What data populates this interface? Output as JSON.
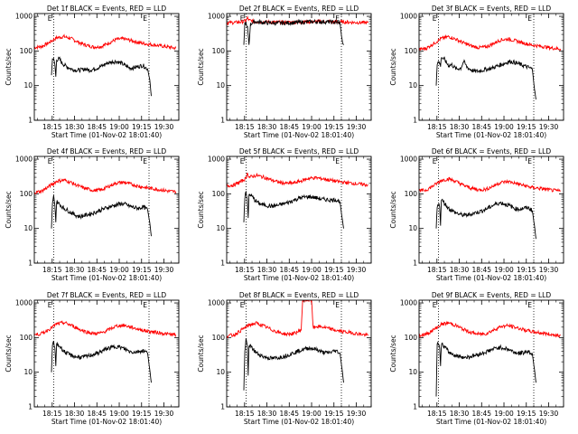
{
  "colors": {
    "events": "#000000",
    "lld": "#ff0000",
    "axes": "#000000",
    "background": "#ffffff"
  },
  "shared": {
    "ylabel": "Counts/sec",
    "xlabel": "Start Time (01-Nov-02 18:01:40)",
    "yticks": [
      1,
      10,
      100,
      1000
    ],
    "ytick_labels": [
      "1",
      "10",
      "100",
      "1000"
    ],
    "xticks": [
      "18:15",
      "18:30",
      "18:45",
      "19:00",
      "19:15",
      "19:30"
    ],
    "xtick_minutes": [
      15,
      30,
      45,
      60,
      75,
      90
    ],
    "xlim_minutes": [
      3,
      100
    ],
    "ylim": [
      1,
      1200
    ],
    "yscale": "log",
    "marker_label": "E",
    "marker_minutes": [
      16,
      80
    ]
  },
  "chart_data": [
    {
      "type": "line",
      "title": "Det 1f BLACK = Events, RED = LLD",
      "series": [
        {
          "name": "Events",
          "x": [
            14.5,
            15.2,
            16,
            16.8,
            17.4,
            18,
            19,
            20,
            21.5,
            23,
            25,
            28,
            31,
            34,
            37,
            40,
            43,
            46,
            49,
            52,
            55,
            58,
            61,
            64,
            67,
            70,
            73,
            76,
            79,
            80.5,
            81.5
          ],
          "y": [
            20,
            55,
            60,
            40,
            18,
            55,
            58,
            58,
            45,
            40,
            35,
            30,
            28,
            28,
            30,
            28,
            30,
            33,
            38,
            45,
            48,
            50,
            45,
            38,
            32,
            33,
            36,
            38,
            30,
            15,
            5
          ]
        },
        {
          "name": "LLD",
          "x": [
            3,
            8,
            13,
            18,
            23,
            28,
            33,
            38,
            43,
            48,
            53,
            58,
            63,
            68,
            73,
            78,
            83,
            88,
            93,
            98
          ],
          "y": [
            125,
            135,
            175,
            240,
            260,
            225,
            175,
            145,
            130,
            135,
            170,
            215,
            225,
            200,
            175,
            160,
            150,
            140,
            130,
            120
          ]
        }
      ]
    },
    {
      "type": "line",
      "title": "Det 2f BLACK = Events, RED = LLD",
      "series": [
        {
          "name": "Events",
          "x": [
            14.5,
            15.2,
            16,
            17,
            18,
            19,
            20,
            22,
            25,
            30,
            35,
            40,
            45,
            50,
            55,
            60,
            65,
            70,
            75,
            79,
            80.5,
            81.5
          ],
          "y": [
            150,
            600,
            650,
            500,
            150,
            580,
            650,
            700,
            680,
            650,
            640,
            640,
            650,
            660,
            680,
            700,
            700,
            690,
            680,
            650,
            200,
            150
          ]
        },
        {
          "name": "LLD",
          "x": [
            3,
            8,
            13,
            16,
            17,
            18,
            23,
            28,
            33,
            38,
            43,
            48,
            53,
            58,
            63,
            68,
            73,
            78,
            83,
            88,
            93,
            98
          ],
          "y": [
            650,
            660,
            690,
            750,
            900,
            760,
            700,
            690,
            680,
            670,
            670,
            675,
            685,
            695,
            700,
            705,
            700,
            690,
            680,
            670,
            660,
            655
          ]
        }
      ]
    },
    {
      "type": "line",
      "title": "Det 3f BLACK = Events, RED = LLD",
      "series": [
        {
          "name": "Events",
          "x": [
            14.5,
            15.2,
            16,
            16.8,
            17.4,
            18,
            19,
            20,
            21.5,
            23,
            25,
            28,
            31,
            33,
            35,
            37,
            40,
            43,
            46,
            49,
            52,
            55,
            58,
            61,
            64,
            67,
            70,
            73,
            76,
            79,
            80.5,
            81.5
          ],
          "y": [
            10,
            40,
            50,
            45,
            35,
            70,
            60,
            58,
            45,
            38,
            40,
            30,
            32,
            50,
            35,
            30,
            26,
            26,
            28,
            30,
            32,
            36,
            40,
            45,
            50,
            47,
            42,
            38,
            34,
            30,
            8,
            4
          ]
        },
        {
          "name": "LLD",
          "x": [
            3,
            8,
            13,
            18,
            23,
            28,
            33,
            38,
            43,
            48,
            53,
            58,
            63,
            68,
            73,
            78,
            83,
            88,
            93,
            98
          ],
          "y": [
            110,
            120,
            165,
            230,
            260,
            215,
            170,
            140,
            125,
            130,
            165,
            210,
            220,
            195,
            170,
            150,
            140,
            130,
            120,
            115
          ]
        }
      ]
    },
    {
      "type": "line",
      "title": "Det 4f BLACK = Events, RED = LLD",
      "series": [
        {
          "name": "Events",
          "x": [
            14.5,
            15.2,
            16,
            16.8,
            17.4,
            18,
            19,
            20,
            21.5,
            23,
            25,
            28,
            31,
            34,
            37,
            40,
            43,
            46,
            49,
            52,
            55,
            58,
            61,
            64,
            67,
            70,
            73,
            76,
            79,
            80.5,
            81.5
          ],
          "y": [
            10,
            55,
            90,
            45,
            15,
            60,
            55,
            50,
            42,
            38,
            34,
            28,
            24,
            22,
            24,
            26,
            28,
            32,
            36,
            40,
            44,
            48,
            52,
            50,
            44,
            40,
            38,
            42,
            35,
            15,
            6
          ]
        },
        {
          "name": "LLD",
          "x": [
            3,
            8,
            13,
            18,
            23,
            28,
            33,
            38,
            43,
            48,
            53,
            58,
            63,
            68,
            73,
            78,
            83,
            88,
            93,
            98
          ],
          "y": [
            110,
            120,
            165,
            230,
            250,
            210,
            165,
            140,
            125,
            130,
            165,
            205,
            215,
            190,
            165,
            150,
            140,
            130,
            120,
            115
          ]
        }
      ]
    },
    {
      "type": "line",
      "title": "Det 5f BLACK = Events, RED = LLD",
      "series": [
        {
          "name": "Events",
          "x": [
            14.5,
            15.2,
            16,
            16.8,
            17.4,
            18,
            19,
            20,
            21.5,
            23,
            25,
            28,
            31,
            34,
            37,
            40,
            43,
            46,
            49,
            52,
            55,
            58,
            61,
            64,
            67,
            70,
            73,
            76,
            79,
            80.5,
            81.5
          ],
          "y": [
            15,
            80,
            110,
            70,
            20,
            90,
            95,
            85,
            70,
            60,
            52,
            48,
            45,
            44,
            46,
            50,
            54,
            60,
            68,
            76,
            80,
            82,
            80,
            75,
            70,
            68,
            66,
            68,
            60,
            20,
            10
          ]
        },
        {
          "name": "LLD",
          "x": [
            3,
            8,
            13,
            16,
            17,
            18,
            23,
            28,
            33,
            38,
            43,
            48,
            53,
            58,
            63,
            68,
            73,
            78,
            83,
            88,
            93,
            98
          ],
          "y": [
            170,
            180,
            230,
            280,
            420,
            300,
            340,
            300,
            250,
            215,
            200,
            205,
            235,
            280,
            290,
            270,
            245,
            225,
            210,
            200,
            190,
            180
          ]
        }
      ]
    },
    {
      "type": "line",
      "title": "Det 6f BLACK = Events, RED = LLD",
      "series": [
        {
          "name": "Events",
          "x": [
            14.5,
            15.2,
            16,
            16.8,
            17.4,
            18,
            19,
            20,
            21.5,
            23,
            25,
            28,
            31,
            34,
            37,
            40,
            43,
            46,
            49,
            52,
            55,
            58,
            61,
            64,
            67,
            70,
            73,
            76,
            79,
            80.5,
            81.5
          ],
          "y": [
            10,
            45,
            55,
            42,
            12,
            70,
            60,
            55,
            45,
            38,
            33,
            28,
            25,
            24,
            25,
            28,
            30,
            33,
            38,
            45,
            52,
            55,
            50,
            45,
            38,
            36,
            38,
            40,
            33,
            12,
            5
          ]
        },
        {
          "name": "LLD",
          "x": [
            3,
            8,
            13,
            18,
            23,
            28,
            33,
            38,
            43,
            48,
            53,
            58,
            63,
            68,
            73,
            78,
            83,
            88,
            93,
            98
          ],
          "y": [
            120,
            130,
            175,
            245,
            270,
            225,
            175,
            145,
            130,
            135,
            170,
            215,
            225,
            200,
            175,
            155,
            145,
            135,
            125,
            120
          ]
        }
      ]
    },
    {
      "type": "line",
      "title": "Det 7f BLACK = Events, RED = LLD",
      "series": [
        {
          "name": "Events",
          "x": [
            14.5,
            15.2,
            16,
            16.8,
            17.4,
            18,
            19,
            20,
            21.5,
            23,
            25,
            28,
            31,
            34,
            37,
            40,
            43,
            46,
            49,
            52,
            55,
            58,
            61,
            64,
            67,
            70,
            73,
            76,
            79,
            80.5,
            81.5
          ],
          "y": [
            10,
            65,
            70,
            50,
            15,
            65,
            60,
            56,
            48,
            40,
            35,
            30,
            28,
            27,
            28,
            30,
            33,
            36,
            42,
            48,
            52,
            56,
            52,
            46,
            40,
            38,
            40,
            42,
            36,
            12,
            5
          ]
        },
        {
          "name": "LLD",
          "x": [
            3,
            8,
            13,
            18,
            23,
            28,
            33,
            38,
            43,
            48,
            53,
            58,
            63,
            68,
            73,
            78,
            83,
            88,
            93,
            98
          ],
          "y": [
            120,
            130,
            175,
            245,
            270,
            225,
            175,
            145,
            130,
            135,
            170,
            215,
            225,
            200,
            175,
            155,
            145,
            135,
            125,
            120
          ]
        }
      ]
    },
    {
      "type": "line",
      "title": "Det 8f BLACK = Events, RED = LLD",
      "series": [
        {
          "name": "Events",
          "x": [
            14.5,
            15.2,
            16,
            16.8,
            17.4,
            18,
            19,
            20,
            21.5,
            23,
            25,
            28,
            31,
            34,
            37,
            40,
            43,
            46,
            49,
            52,
            55,
            58,
            61,
            64,
            67,
            70,
            73,
            76,
            79,
            80.5,
            81.5
          ],
          "y": [
            3,
            40,
            90,
            60,
            8,
            60,
            55,
            50,
            42,
            36,
            32,
            28,
            26,
            25,
            26,
            28,
            30,
            34,
            38,
            42,
            46,
            50,
            48,
            44,
            38,
            36,
            38,
            42,
            36,
            12,
            5
          ]
        },
        {
          "name": "LLD",
          "x": [
            3,
            8,
            13,
            18,
            23,
            28,
            33,
            38,
            43,
            48,
            53,
            54,
            58,
            60,
            61,
            63,
            68,
            73,
            78,
            83,
            88,
            93,
            98
          ],
          "y": [
            110,
            120,
            165,
            230,
            260,
            215,
            170,
            140,
            125,
            130,
            165,
            1200,
            1200,
            1200,
            190,
            210,
            200,
            175,
            155,
            145,
            135,
            125,
            115
          ]
        }
      ]
    },
    {
      "type": "line",
      "title": "Det 9f BLACK = Events, RED = LLD",
      "series": [
        {
          "name": "Events",
          "x": [
            14.5,
            15.2,
            16,
            16.8,
            17.4,
            18,
            19,
            20,
            21.5,
            23,
            25,
            28,
            31,
            34,
            37,
            40,
            43,
            46,
            49,
            52,
            55,
            58,
            61,
            64,
            67,
            70,
            73,
            76,
            79,
            80.5,
            81.5
          ],
          "y": [
            2,
            60,
            70,
            50,
            15,
            65,
            60,
            55,
            46,
            38,
            34,
            30,
            28,
            27,
            28,
            30,
            33,
            36,
            40,
            45,
            50,
            52,
            48,
            44,
            38,
            35,
            37,
            40,
            34,
            12,
            5
          ]
        },
        {
          "name": "LLD",
          "x": [
            3,
            8,
            13,
            18,
            23,
            28,
            33,
            38,
            43,
            48,
            53,
            58,
            63,
            68,
            73,
            78,
            83,
            88,
            93,
            98
          ],
          "y": [
            115,
            125,
            170,
            240,
            265,
            220,
            170,
            140,
            125,
            130,
            165,
            210,
            220,
            195,
            170,
            150,
            140,
            130,
            120,
            115
          ]
        }
      ]
    }
  ]
}
